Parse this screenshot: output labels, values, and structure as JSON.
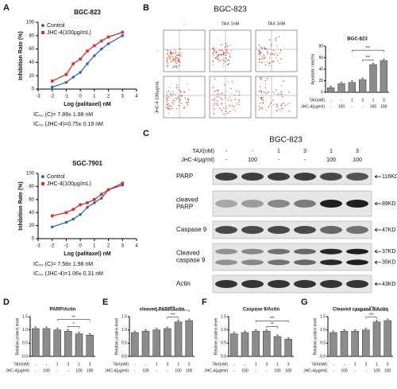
{
  "panel_labels": [
    "A",
    "B",
    "C",
    "D",
    "E",
    "F",
    "G"
  ],
  "conditions": {
    "rows": [
      "TAX(nM)",
      "JHC-4(μg/ml)"
    ],
    "values": [
      [
        "-",
        "-",
        "1",
        "3",
        "1",
        "3"
      ],
      [
        "-",
        "100",
        "-",
        "-",
        "100",
        "100"
      ]
    ]
  },
  "flow": {
    "title": "BGC-823",
    "columns": [
      "-",
      "TAX 1nM",
      "TAX 3nM"
    ],
    "rows": [
      "-",
      "JHC-4 100μg/mL"
    ]
  },
  "blot": {
    "title": "BGC-823",
    "rows": [
      {
        "label": [
          "PARP"
        ],
        "sizes": [
          "116KD"
        ]
      },
      {
        "label": [
          "cleaved",
          "PARP"
        ],
        "sizes": [
          "89KD"
        ]
      },
      {
        "label": [
          "Caspase 9"
        ],
        "sizes": [
          "47KD"
        ]
      },
      {
        "label": [
          "Cleaved",
          "caspase 9"
        ],
        "sizes": [
          "37KD",
          "35KD"
        ]
      },
      {
        "label": [
          "Actin"
        ],
        "sizes": [
          "43KD"
        ]
      }
    ]
  },
  "chart_data": [
    {
      "type": "line",
      "title": "BGC-823",
      "xlabel": "Log (palitaxel) nM",
      "ylabel": "Inhibition Rate (%)",
      "x": [
        -2,
        -1,
        -0.5,
        0,
        0.5,
        1,
        1.5,
        2,
        3
      ],
      "series": [
        {
          "name": "Control",
          "color": "#3a66b0",
          "values": [
            3,
            10,
            18,
            25,
            38,
            50,
            60,
            68,
            80
          ]
        },
        {
          "name": "JHC-4(100μg/mL)",
          "color": "#d9312b",
          "values": [
            12,
            22,
            38,
            45,
            57,
            65,
            72,
            78,
            85
          ]
        }
      ],
      "xlim": [
        -3,
        4
      ],
      "xticks": [
        -3,
        -2,
        -1,
        0,
        1,
        2,
        3,
        4
      ],
      "ylim": [
        0,
        100
      ],
      "yticks": [
        0,
        20,
        40,
        60,
        80,
        100
      ],
      "legend": "upper left",
      "annotations": [
        "IC₅₀ (C)= 7.89± 1.98 nM",
        "IC₅₀ (JHC-4)=0.75± 0.19 nM"
      ]
    },
    {
      "type": "line",
      "title": "SGC-7901",
      "xlabel": "Log (palitaxel) nM",
      "ylabel": "Inhibition Rate (%)",
      "x": [
        -2,
        -1,
        -0.5,
        0,
        0.5,
        1,
        1.5,
        2,
        3
      ],
      "series": [
        {
          "name": "Control",
          "color": "#3a66b0",
          "values": [
            18,
            25,
            30,
            37,
            48,
            55,
            62,
            75,
            82
          ]
        },
        {
          "name": "JHC-4(100μg/mL)",
          "color": "#d9312b",
          "values": [
            35,
            40,
            45,
            52,
            55,
            60,
            68,
            75,
            85
          ]
        }
      ],
      "xlim": [
        -3,
        4
      ],
      "xticks": [
        -3,
        -2,
        -1,
        0,
        1,
        2,
        3,
        4
      ],
      "ylim": [
        0,
        100
      ],
      "yticks": [
        0,
        20,
        40,
        60,
        80,
        100
      ],
      "legend": "upper left",
      "annotations": [
        "IC₅₀ (C)= 7.58± 1.98 nM",
        "IC₅₀ (JHC-4)=1.06± 0.31 nM"
      ]
    },
    {
      "type": "bar",
      "title": "BGC-823",
      "ylabel": "Apoptotic rate(%)",
      "categories": [
        null,
        null,
        null,
        null,
        null,
        null
      ],
      "values": [
        8,
        15,
        17,
        22,
        48,
        55
      ],
      "color": "#8c8c8c",
      "ylim": [
        0,
        80
      ],
      "yticks": [
        0,
        20,
        40,
        60,
        80
      ],
      "significance": [
        "***",
        "***"
      ]
    },
    {
      "type": "bar",
      "title": "PARP/Actin",
      "ylabel": "Relative protein level",
      "categories": [
        null,
        null,
        null,
        null,
        null,
        null
      ],
      "values": [
        1.05,
        1.05,
        1.0,
        0.95,
        0.85,
        0.8
      ],
      "color": "#8c8c8c",
      "ylim": [
        0,
        1.5
      ],
      "yticks": [
        {
          "value": 0,
          "label": "0.0"
        },
        {
          "value": 0.5,
          "label": "0.5"
        },
        {
          "value": 1,
          "label": "1.0"
        },
        {
          "value": 1.5,
          "label": "1.5"
        }
      ],
      "significance": [
        "*",
        "**"
      ]
    },
    {
      "type": "bar",
      "title": "cleaved PARP/Actin",
      "ylabel": "Relative protein level",
      "categories": [
        null,
        null,
        null,
        null,
        null,
        null
      ],
      "values": [
        0.9,
        0.95,
        1.0,
        1.05,
        1.3,
        1.35
      ],
      "color": "#8c8c8c",
      "ylim": [
        0,
        1.5
      ],
      "yticks": [
        {
          "value": 0,
          "label": "0.0"
        },
        {
          "value": 0.5,
          "label": "0.5"
        },
        {
          "value": 1,
          "label": "1.0"
        },
        {
          "value": 1.5,
          "label": "1.5"
        }
      ],
      "significance": [
        "***",
        "***"
      ]
    },
    {
      "type": "bar",
      "title": "Caspase 9/Actin",
      "ylabel": "Relative protein level",
      "categories": [
        null,
        null,
        null,
        null,
        null,
        null
      ],
      "values": [
        0.85,
        0.9,
        0.95,
        0.95,
        0.75,
        0.65
      ],
      "color": "#8c8c8c",
      "ylim": [
        0,
        1.5
      ],
      "yticks": [
        {
          "value": 0,
          "label": "0.0"
        },
        {
          "value": 0.5,
          "label": "0.5"
        },
        {
          "value": 1,
          "label": "1.0"
        },
        {
          "value": 1.5,
          "label": "1.5"
        }
      ],
      "significance": [
        "**",
        "***"
      ]
    },
    {
      "type": "bar",
      "title": "Cleaved caspase 9/Actin",
      "ylabel": "Relative protein level",
      "categories": [
        null,
        null,
        null,
        null,
        null,
        null
      ],
      "values": [
        0.9,
        0.95,
        0.95,
        1.0,
        1.3,
        1.35
      ],
      "color": "#8c8c8c",
      "ylim": [
        0,
        1.5
      ],
      "yticks": [
        {
          "value": 0,
          "label": "0.0"
        },
        {
          "value": 0.5,
          "label": "0.5"
        },
        {
          "value": 1,
          "label": "1.0"
        },
        {
          "value": 1.5,
          "label": "1.5"
        }
      ],
      "significance": [
        "***",
        "***"
      ]
    }
  ]
}
